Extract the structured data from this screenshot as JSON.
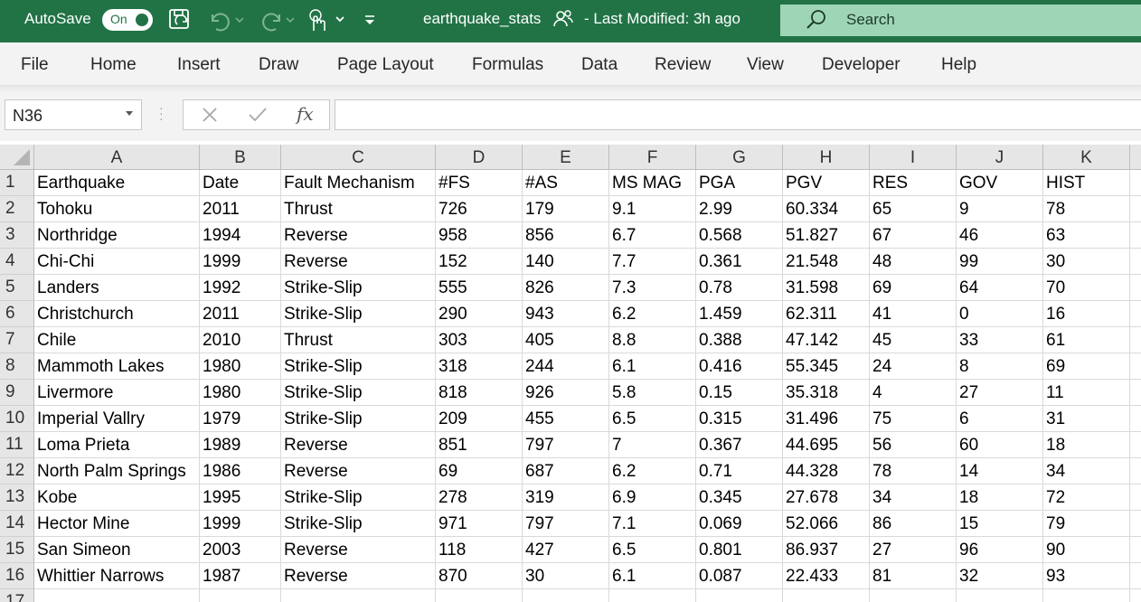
{
  "titlebar": {
    "autosave_label": "AutoSave",
    "autosave_state": "On",
    "filename": "earthquake_stats",
    "modified": "-  Last Modified: 3h ago",
    "search_placeholder": "Search",
    "bg_color": "#217346"
  },
  "icons": {
    "save": "save-icon",
    "undo": "undo-icon",
    "redo": "redo-icon",
    "touch": "touch-mode-icon",
    "customize": "customize-toolbar-icon",
    "share": "people-icon",
    "search": "search-icon",
    "cancel": "cancel-icon",
    "enter": "checkmark-icon",
    "function": "fx-icon"
  },
  "ribbon": {
    "tabs": [
      "File",
      "Home",
      "Insert",
      "Draw",
      "Page Layout",
      "Formulas",
      "Data",
      "Review",
      "View",
      "Developer",
      "Help"
    ]
  },
  "formula_bar": {
    "name_box": "N36",
    "fx_label": "fx",
    "formula_value": ""
  },
  "sheet": {
    "column_letters": [
      "A",
      "B",
      "C",
      "D",
      "E",
      "F",
      "G",
      "H",
      "I",
      "J",
      "K"
    ],
    "row_numbers": [
      "1",
      "2",
      "3",
      "4",
      "5",
      "6",
      "7",
      "8",
      "9",
      "10",
      "11",
      "12",
      "13",
      "14",
      "15",
      "16",
      "17"
    ],
    "rows": [
      [
        "Earthquake",
        "Date",
        "Fault Mechanism",
        "#FS",
        "#AS",
        "MS MAG",
        "PGA",
        "PGV",
        "RES",
        "GOV",
        "HIST"
      ],
      [
        "Tohoku",
        "2011",
        "Thrust",
        "726",
        "179",
        "9.1",
        "2.99",
        "60.334",
        "65",
        "9",
        "78"
      ],
      [
        "Northridge",
        "1994",
        "Reverse",
        "958",
        "856",
        "6.7",
        "0.568",
        "51.827",
        "67",
        "46",
        "63"
      ],
      [
        "Chi-Chi",
        "1999",
        "Reverse",
        "152",
        "140",
        "7.7",
        "0.361",
        "21.548",
        "48",
        "99",
        "30"
      ],
      [
        "Landers",
        "1992",
        "Strike-Slip",
        "555",
        "826",
        "7.3",
        "0.78",
        "31.598",
        "69",
        "64",
        "70"
      ],
      [
        "Christchurch",
        "2011",
        "Strike-Slip",
        "290",
        "943",
        "6.2",
        "1.459",
        "62.311",
        "41",
        "0",
        "16"
      ],
      [
        "Chile",
        "2010",
        "Thrust",
        "303",
        "405",
        "8.8",
        "0.388",
        "47.142",
        "45",
        "33",
        "61"
      ],
      [
        "Mammoth Lakes",
        "1980",
        "Strike-Slip",
        "318",
        "244",
        "6.1",
        "0.416",
        "55.345",
        "24",
        "8",
        "69"
      ],
      [
        "Livermore",
        "1980",
        "Strike-Slip",
        "818",
        "926",
        "5.8",
        "0.15",
        "35.318",
        "4",
        "27",
        "11"
      ],
      [
        "Imperial Vallry",
        "1979",
        "Strike-Slip",
        "209",
        "455",
        "6.5",
        "0.315",
        "31.496",
        "75",
        "6",
        "31"
      ],
      [
        "Loma Prieta",
        "1989",
        "Reverse",
        "851",
        "797",
        "7",
        "0.367",
        "44.695",
        "56",
        "60",
        "18"
      ],
      [
        "North Palm Springs",
        "1986",
        "Reverse",
        "69",
        "687",
        "6.2",
        "0.71",
        "44.328",
        "78",
        "14",
        "34"
      ],
      [
        "Kobe",
        "1995",
        "Strike-Slip",
        "278",
        "319",
        "6.9",
        "0.345",
        "27.678",
        "34",
        "18",
        "72"
      ],
      [
        "Hector Mine",
        "1999",
        "Strike-Slip",
        "971",
        "797",
        "7.1",
        "0.069",
        "52.066",
        "86",
        "15",
        "79"
      ],
      [
        "San Simeon",
        "2003",
        "Reverse",
        "118",
        "427",
        "6.5",
        "0.801",
        "86.937",
        "27",
        "96",
        "90"
      ],
      [
        "Whittier Narrows",
        "1987",
        "Reverse",
        "870",
        "30",
        "6.1",
        "0.087",
        "22.433",
        "81",
        "32",
        "93"
      ],
      [
        "",
        "",
        "",
        "",
        "",
        "",
        "",
        "",
        "",
        "",
        ""
      ]
    ]
  }
}
